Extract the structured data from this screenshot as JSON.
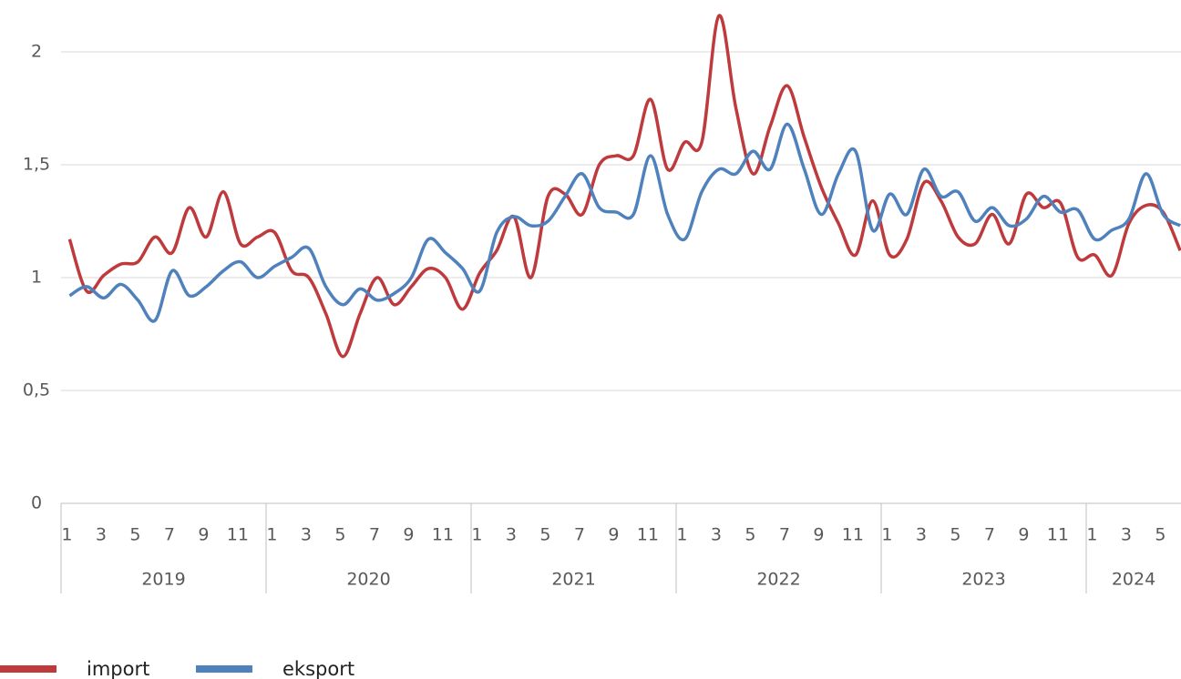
{
  "chart_data": {
    "type": "line",
    "categories": [
      "1",
      null,
      "3",
      null,
      "5",
      null,
      "7",
      null,
      "9",
      null,
      "11",
      null,
      "1",
      null,
      "3",
      null,
      "5",
      null,
      "7",
      null,
      "9",
      null,
      "11",
      null,
      "1",
      null,
      "3",
      null,
      "5",
      null,
      "7",
      null,
      "9",
      null,
      "11",
      null,
      "1",
      null,
      "3",
      null,
      "5",
      null,
      "7",
      null,
      "9",
      null,
      "11",
      null,
      "1",
      null,
      "3",
      null,
      "5",
      null,
      "7",
      null,
      "9",
      null,
      "11",
      null,
      "1",
      null,
      "3",
      null,
      "5",
      null
    ],
    "groups": [
      "2019",
      "2020",
      "2021",
      "2022",
      "2023",
      "2024"
    ],
    "series": [
      {
        "name": "import",
        "color": "#be3a3c",
        "values": [
          1.17,
          0.94,
          1.01,
          1.06,
          1.07,
          1.18,
          1.11,
          1.31,
          1.18,
          1.38,
          1.15,
          1.18,
          1.2,
          1.03,
          1.0,
          0.84,
          0.65,
          0.84,
          1.0,
          0.88,
          0.96,
          1.04,
          1.0,
          0.86,
          1.02,
          1.12,
          1.27,
          1.0,
          1.36,
          1.37,
          1.28,
          1.5,
          1.54,
          1.54,
          1.79,
          1.48,
          1.6,
          1.6,
          2.16,
          1.75,
          1.46,
          1.67,
          1.85,
          1.62,
          1.4,
          1.24,
          1.1,
          1.34,
          1.1,
          1.17,
          1.42,
          1.34,
          1.18,
          1.15,
          1.28,
          1.15,
          1.37,
          1.31,
          1.33,
          1.09,
          1.1,
          1.01,
          1.24,
          1.32,
          1.29,
          1.12
        ]
      },
      {
        "name": "eksport",
        "color": "#4f81bd",
        "values": [
          0.92,
          0.96,
          0.91,
          0.97,
          0.9,
          0.81,
          1.03,
          0.92,
          0.96,
          1.03,
          1.07,
          1.0,
          1.05,
          1.09,
          1.13,
          0.96,
          0.88,
          0.95,
          0.9,
          0.93,
          1.0,
          1.17,
          1.11,
          1.04,
          0.94,
          1.2,
          1.27,
          1.23,
          1.25,
          1.36,
          1.46,
          1.31,
          1.29,
          1.28,
          1.54,
          1.28,
          1.17,
          1.38,
          1.48,
          1.46,
          1.56,
          1.48,
          1.68,
          1.48,
          1.28,
          1.46,
          1.56,
          1.21,
          1.37,
          1.28,
          1.48,
          1.36,
          1.38,
          1.25,
          1.31,
          1.23,
          1.26,
          1.36,
          1.29,
          1.3,
          1.17,
          1.21,
          1.26,
          1.46,
          1.28,
          1.23
        ]
      }
    ],
    "ylim": [
      0,
      2.2
    ],
    "yticks": [
      0,
      {
        "value": 0.5,
        "label": "0,5"
      },
      1,
      {
        "value": 1.5,
        "label": "1,5"
      },
      2
    ],
    "grid": true,
    "legend": "bottom-left"
  }
}
